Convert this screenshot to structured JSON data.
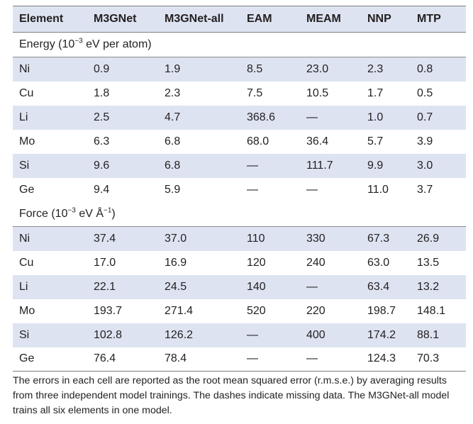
{
  "table": {
    "headers": [
      "Element",
      "M3GNet",
      "M3GNet-all",
      "EAM",
      "MEAM",
      "NNP",
      "MTP"
    ],
    "sections": [
      {
        "label_main": "Energy (10",
        "label_sup": "−3",
        "label_tail": " eV per atom)",
        "rows": [
          {
            "cells": [
              "Ni",
              "0.9",
              "1.9",
              "8.5",
              "23.0",
              "2.3",
              "0.8"
            ]
          },
          {
            "cells": [
              "Cu",
              "1.8",
              "2.3",
              "7.5",
              "10.5",
              "1.7",
              "0.5"
            ]
          },
          {
            "cells": [
              "Li",
              "2.5",
              "4.7",
              "368.6",
              "—",
              "1.0",
              "0.7"
            ]
          },
          {
            "cells": [
              "Mo",
              "6.3",
              "6.8",
              "68.0",
              "36.4",
              "5.7",
              "3.9"
            ]
          },
          {
            "cells": [
              "Si",
              "9.6",
              "6.8",
              "—",
              "111.7",
              "9.9",
              "3.0"
            ]
          },
          {
            "cells": [
              "Ge",
              "9.4",
              "5.9",
              "—",
              "—",
              "11.0",
              "3.7"
            ]
          }
        ]
      },
      {
        "label_main": "Force (10",
        "label_sup": "−3",
        "label_mid": " eV Å",
        "label_sup2": "−1",
        "label_tail": ")",
        "rows": [
          {
            "cells": [
              "Ni",
              "37.4",
              "37.0",
              "110",
              "330",
              "67.3",
              "26.9"
            ]
          },
          {
            "cells": [
              "Cu",
              "17.0",
              "16.9",
              "120",
              "240",
              "63.0",
              "13.5"
            ]
          },
          {
            "cells": [
              "Li",
              "22.1",
              "24.5",
              "140",
              "—",
              "63.4",
              "13.2"
            ]
          },
          {
            "cells": [
              "Mo",
              "193.7",
              "271.4",
              "520",
              "220",
              "198.7",
              "148.1"
            ]
          },
          {
            "cells": [
              "Si",
              "102.8",
              "126.2",
              "—",
              "400",
              "174.2",
              "88.1"
            ]
          },
          {
            "cells": [
              "Ge",
              "76.4",
              "78.4",
              "—",
              "—",
              "124.3",
              "70.3"
            ]
          }
        ]
      }
    ]
  },
  "footnote": "The errors in each cell are reported as the root mean squared error (r.m.s.e.) by averaging results from three independent model trainings. The dashes indicate missing data. The M3GNet-all model trains all six elements in one model.",
  "colors": {
    "header_bg": "#dde3f1",
    "stripe_bg": "#dde3f1",
    "text": "#231f20",
    "rule": "#7f7f7f"
  }
}
